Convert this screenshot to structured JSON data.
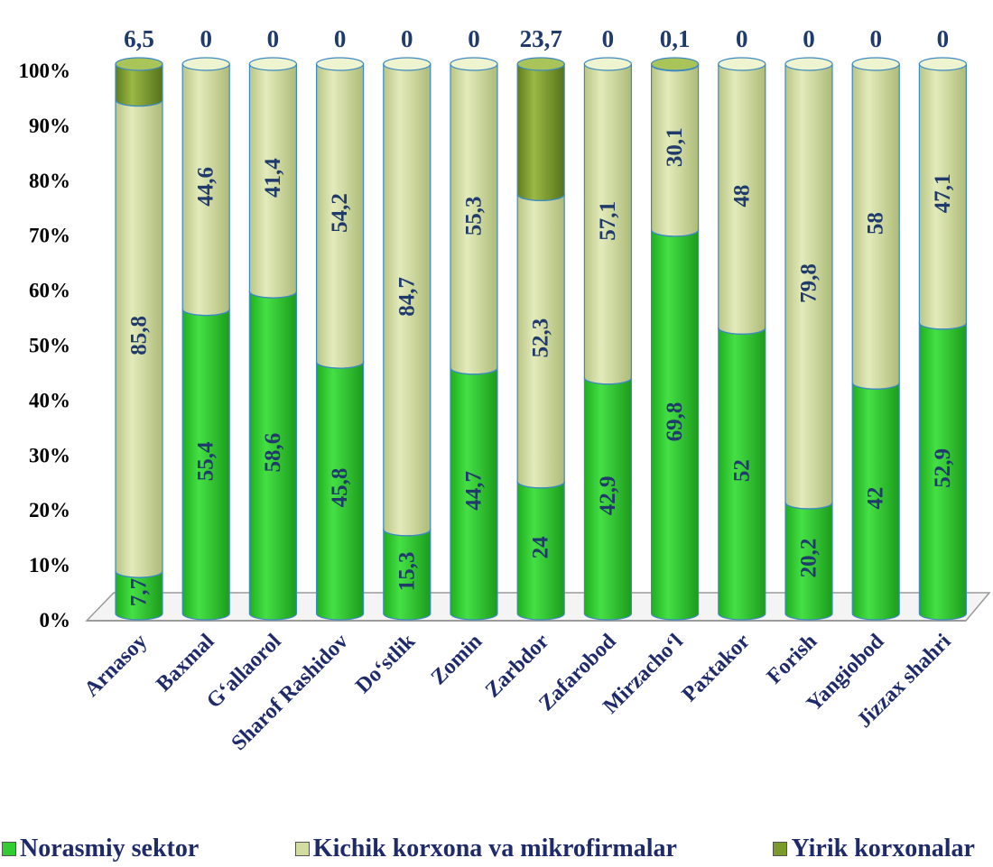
{
  "chart_data": {
    "type": "bar",
    "stacked": true,
    "percent_stacked": true,
    "title": "",
    "categories": [
      "Arnasoy",
      "Baxmal",
      "G‘allaorol",
      "Sharof Rashidov",
      "Do‘stlik",
      "Zomin",
      "Zarbdor",
      "Zafarobod",
      "Mirzacho‘l",
      "Paxtakor",
      "Forish",
      "Yangiobod",
      "Jizzax shahri"
    ],
    "series": [
      {
        "name": "Norasmiy sektor",
        "color": "#33cc33",
        "values": [
          7.7,
          55.4,
          58.6,
          45.8,
          15.3,
          44.7,
          24,
          42.9,
          69.8,
          52,
          20.2,
          42,
          52.9
        ]
      },
      {
        "name": "Kichik korxona va mikrofirmalar",
        "color": "#d2dca0",
        "values": [
          85.8,
          44.6,
          41.4,
          54.2,
          84.7,
          55.3,
          52.3,
          57.1,
          30.1,
          48,
          79.8,
          58,
          47.1
        ]
      },
      {
        "name": "Yirik korxonalar",
        "color": "#7a9a2a",
        "values": [
          6.5,
          0,
          0,
          0,
          0,
          0,
          23.7,
          0,
          0.1,
          0,
          0,
          0,
          0
        ]
      }
    ],
    "series_labels": [
      [
        "7,7",
        "55,4",
        "58,6",
        "45,8",
        "15,3",
        "44,7",
        "24",
        "42,9",
        "69,8",
        "52",
        "20,2",
        "42",
        "52,9"
      ],
      [
        "85,8",
        "44,6",
        "41,4",
        "54,2",
        "84,7",
        "55,3",
        "52,3",
        "57,1",
        "30,1",
        "48",
        "79,8",
        "58",
        "47,1"
      ],
      [
        "6,5",
        "0",
        "0",
        "0",
        "0",
        "0",
        "23,7",
        "0",
        "0,1",
        "0",
        "0",
        "0",
        "0"
      ]
    ],
    "y_ticks": [
      "0%",
      "10%",
      "20%",
      "30%",
      "40%",
      "50%",
      "60%",
      "70%",
      "80%",
      "90%",
      "100%"
    ],
    "ylim": [
      0,
      100
    ],
    "grid": false,
    "legend_position": "bottom"
  }
}
